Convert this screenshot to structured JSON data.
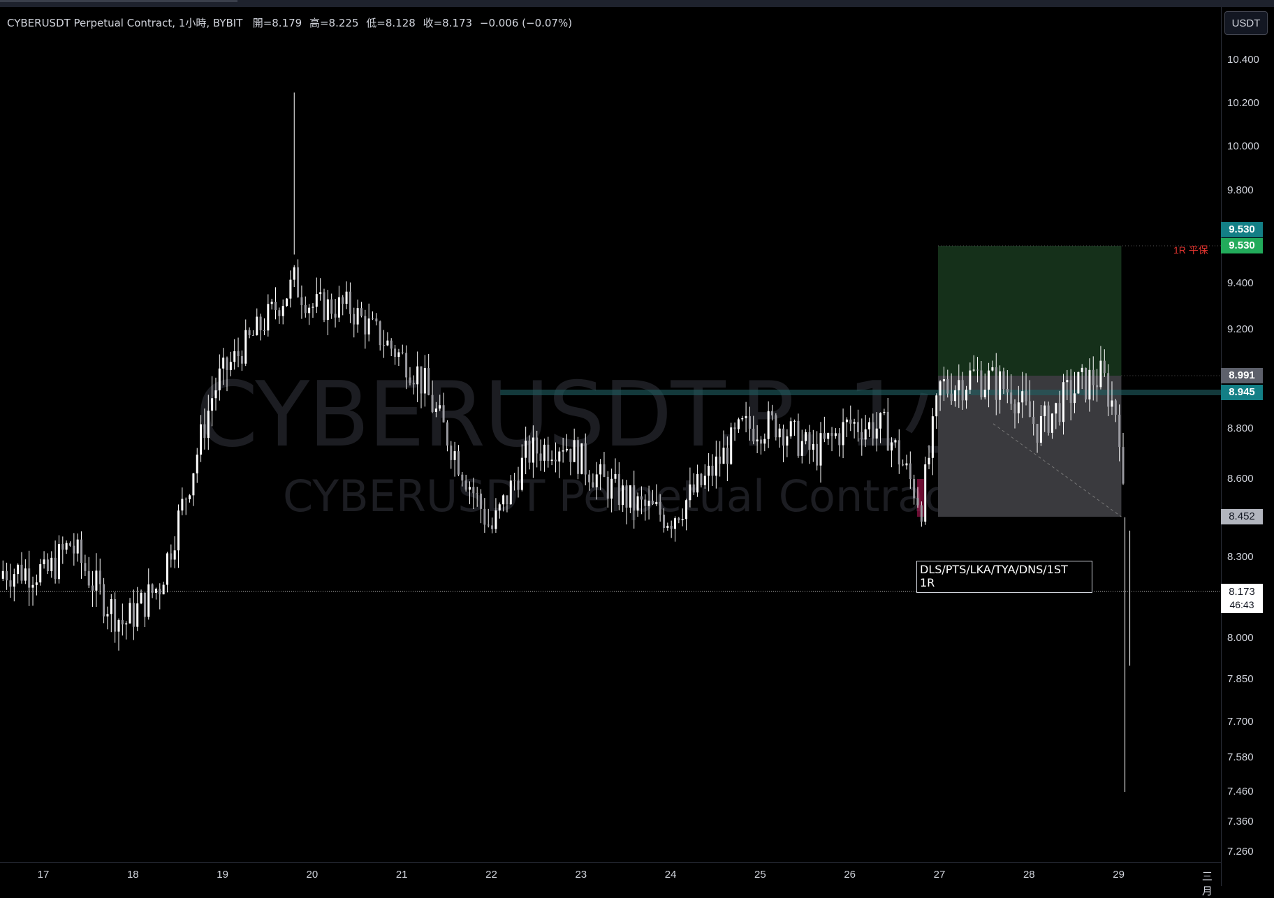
{
  "legend": {
    "symbol": "CYBERUSDT Perpetual Contract, 1小時, BYBIT",
    "open": "開=8.179",
    "high": "高=8.225",
    "low": "低=8.128",
    "close": "收=8.173",
    "change": "−0.006 (−0.07%)"
  },
  "currency_button": "USDT",
  "watermark": {
    "primary": "CYBERUSDT.P, 1小時",
    "secondary": "CYBERUSDT Perpetual Contract"
  },
  "price_axis_ticks": [
    "10.400",
    "10.200",
    "10.000",
    "9.800",
    "9.400",
    "9.200",
    "8.800",
    "8.600",
    "8.300",
    "8.000",
    "7.850",
    "7.700",
    "7.580",
    "7.460",
    "7.360",
    "7.260"
  ],
  "time_axis_ticks": [
    "17",
    "18",
    "19",
    "20",
    "21",
    "22",
    "23",
    "24",
    "25",
    "26",
    "27",
    "28",
    "29",
    "三月"
  ],
  "price_labels": {
    "target_top": "9.530",
    "target": "9.530",
    "entry": "8.991",
    "level": "8.945",
    "stop": "8.452",
    "last_price": "8.173",
    "countdown": "46:43"
  },
  "annotation": {
    "line1": "DLS/PTS/LKA/TYA/DNS/1ST",
    "line2": "1R"
  },
  "r_label": "1R 平保",
  "colors": {
    "background": "#000000",
    "candle": "#ffffff",
    "target_zone": "#15301a",
    "stop_zone": "#3a3a3e",
    "level_line": "#1f5f63",
    "target_label": "#22ab5b",
    "teal_label": "#137f86",
    "entry_label": "#5d606b",
    "stop_label": "#b2b5be"
  },
  "chart_data": {
    "type": "candlestick",
    "symbol": "CYBERUSDT.P",
    "interval": "1小時",
    "exchange": "BYBIT",
    "ylim": [
      7.26,
      10.4
    ],
    "x_ticks": [
      "17",
      "18",
      "19",
      "20",
      "21",
      "22",
      "23",
      "24",
      "25",
      "26",
      "27",
      "28",
      "29",
      "三月"
    ],
    "approx_path": [
      {
        "day": 17.0,
        "price": 8.22
      },
      {
        "day": 17.3,
        "price": 8.35
      },
      {
        "day": 17.6,
        "price": 8.18
      },
      {
        "day": 17.9,
        "price": 8.05
      },
      {
        "day": 18.3,
        "price": 8.2
      },
      {
        "day": 18.6,
        "price": 8.55
      },
      {
        "day": 18.9,
        "price": 8.95
      },
      {
        "day": 19.2,
        "price": 9.1
      },
      {
        "day": 19.5,
        "price": 9.25
      },
      {
        "day": 19.8,
        "price": 9.4
      },
      {
        "day": 20.0,
        "price": 9.3
      },
      {
        "day": 20.4,
        "price": 9.3
      },
      {
        "day": 20.8,
        "price": 9.15
      },
      {
        "day": 21.2,
        "price": 9.0
      },
      {
        "day": 21.6,
        "price": 8.7
      },
      {
        "day": 22.0,
        "price": 8.4
      },
      {
        "day": 22.4,
        "price": 8.7
      },
      {
        "day": 22.8,
        "price": 8.75
      },
      {
        "day": 23.2,
        "price": 8.6
      },
      {
        "day": 23.6,
        "price": 8.5
      },
      {
        "day": 24.0,
        "price": 8.45
      },
      {
        "day": 24.4,
        "price": 8.6
      },
      {
        "day": 24.8,
        "price": 8.8
      },
      {
        "day": 25.2,
        "price": 8.82
      },
      {
        "day": 25.6,
        "price": 8.7
      },
      {
        "day": 26.0,
        "price": 8.82
      },
      {
        "day": 26.4,
        "price": 8.8
      },
      {
        "day": 26.8,
        "price": 8.5
      },
      {
        "day": 27.0,
        "price": 8.95
      },
      {
        "day": 27.4,
        "price": 9.0
      },
      {
        "day": 27.8,
        "price": 8.95
      },
      {
        "day": 28.1,
        "price": 8.8
      },
      {
        "day": 28.5,
        "price": 8.95
      },
      {
        "day": 28.8,
        "price": 9.0
      },
      {
        "day": 29.0,
        "price": 8.85
      },
      {
        "day": 29.1,
        "price": 8.2
      }
    ],
    "extremes": {
      "high": 10.25,
      "low": 7.46
    },
    "position": {
      "entry": 8.991,
      "target": 9.53,
      "stop": 8.452
    },
    "level_line": 8.945,
    "last_price": 8.173
  }
}
